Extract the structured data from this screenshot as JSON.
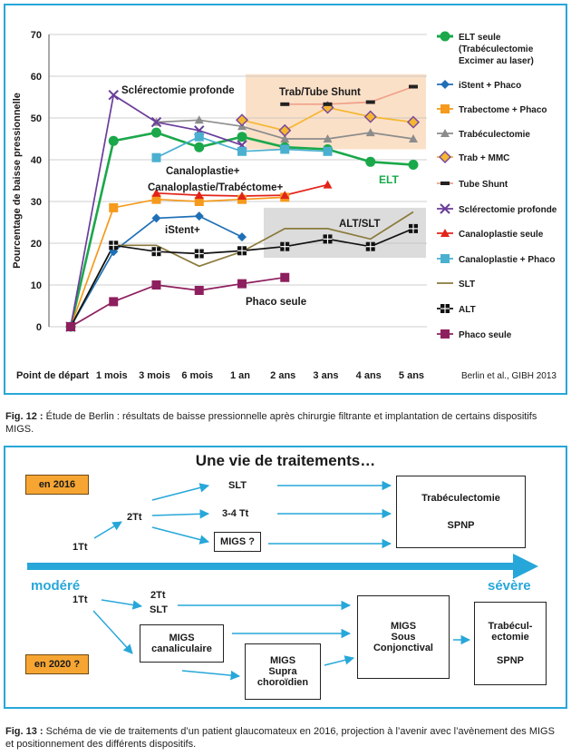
{
  "chart_data": {
    "type": "line",
    "ylabel": "Pourcentage de baisse pressionnelle",
    "ylim": [
      0,
      70
    ],
    "yticks": [
      0,
      10,
      20,
      30,
      40,
      50,
      60,
      70
    ],
    "categories": [
      "Point de départ",
      "1 mois",
      "3 mois",
      "6 mois",
      "1 an",
      "2 ans",
      "3 ans",
      "4 ans",
      "5 ans"
    ],
    "source_note": "Berlin et al., GIBH 2013",
    "series": [
      {
        "name": "ELT seule (Trabéculectomie Excimer au laser)",
        "color": "#1aa84a",
        "marker": "circle",
        "values": [
          0,
          44.5,
          46.5,
          43,
          45.5,
          43,
          42.5,
          39.5,
          38.8
        ]
      },
      {
        "name": "iStent + Phaco",
        "color": "#1f6fb6",
        "marker": "diamond",
        "values": [
          0,
          18,
          26,
          26.5,
          21.5,
          null,
          null,
          null,
          null
        ]
      },
      {
        "name": "Trabectome + Phaco",
        "color": "#f59a1c",
        "marker": "square",
        "values": [
          0,
          28.5,
          30.5,
          30,
          30.5,
          31,
          null,
          null,
          null
        ]
      },
      {
        "name": "Trabéculectomie",
        "color": "#8c8c8c",
        "marker": "triangle",
        "values": [
          null,
          null,
          49,
          49.5,
          48,
          45,
          45,
          46.5,
          45
        ]
      },
      {
        "name": "Trab + MMC",
        "color": "#f5b731",
        "marker": "diamond-open",
        "values": [
          null,
          null,
          null,
          null,
          49.5,
          47,
          52.5,
          50.3,
          49
        ]
      },
      {
        "name": "Tube Shunt",
        "color": "#f0a088",
        "marker": "dash",
        "values": [
          null,
          null,
          null,
          null,
          null,
          53.3,
          53.3,
          53.8,
          57.5
        ]
      },
      {
        "name": "Sclérectomie profonde",
        "color": "#6a3d9a",
        "marker": "x",
        "values": [
          0,
          55.5,
          49,
          47,
          43.5,
          null,
          null,
          null,
          null
        ]
      },
      {
        "name": "Canaloplastie seule",
        "color": "#e2231a",
        "marker": "triangle",
        "values": [
          null,
          null,
          32,
          31.5,
          31.3,
          31.5,
          34,
          null,
          null
        ]
      },
      {
        "name": "Canaloplastie + Phaco",
        "color": "#4bb0d0",
        "marker": "square",
        "values": [
          null,
          null,
          40.5,
          45.5,
          42,
          42.5,
          42,
          null,
          null
        ]
      },
      {
        "name": "SLT",
        "color": "#8a7a3c",
        "marker": "none",
        "values": [
          0,
          19.5,
          19.5,
          14.5,
          18,
          23.5,
          23.5,
          21,
          27.5
        ]
      },
      {
        "name": "ALT",
        "color": "#111111",
        "marker": "square-cross",
        "values": [
          0,
          19.5,
          18,
          17.5,
          18.2,
          19.2,
          21,
          19.2,
          23.5
        ]
      },
      {
        "name": "Phaco seule",
        "color": "#8e1f5e",
        "marker": "square",
        "values": [
          0,
          6,
          10,
          8.7,
          10.3,
          11.8,
          null,
          null,
          null
        ]
      }
    ],
    "annotations": {
      "sclerectomie": "Sclérectomie profonde",
      "trab_tube": "Trab/Tube Shunt",
      "canaloplastie": "Canaloplastie+",
      "canalo_trab": "Canaloplastie/Trabéctome+",
      "elt": "ELT",
      "istent": "iStent+",
      "alt_slt": "ALT/SLT",
      "phaco": "Phaco seule"
    },
    "legend_position": "right",
    "grid": true
  },
  "fig12_caption": {
    "label": "Fig. 12 :",
    "text": " Étude de Berlin : résultats de baisse pressionnelle après chirurgie filtrante et implantation de certains dispositifs MIGS."
  },
  "diagram": {
    "title": "Une vie de traitements…",
    "tag_2016": "en 2016",
    "tag_2020": "en 2020 ?",
    "axis_left": "modéré",
    "axis_right": "sévère",
    "top": {
      "n1": "1Tt",
      "n2": "2Tt",
      "slt": "SLT",
      "tt34": "3-4 Tt",
      "migs": "MIGS ?",
      "trab": "Trabéculectomie",
      "spnp": "SPNP"
    },
    "bottom": {
      "n1": "1Tt",
      "n2": "2Tt",
      "slt": "SLT",
      "migs_can_1": "MIGS",
      "migs_can_2": "canaliculaire",
      "migs_sup_1": "MIGS",
      "migs_sup_2": "Supra",
      "migs_sup_3": "choroïdien",
      "migs_sc_1": "MIGS",
      "migs_sc_2": "Sous",
      "migs_sc_3": "Conjonctival",
      "trab_1": "Trabécul-",
      "trab_2": "ectomie",
      "spnp": "SPNP"
    }
  },
  "fig13_caption": {
    "label": "Fig. 13 :",
    "text": " Schéma de vie de traitements d’un patient glaucomateux en 2016, projection à l’avenir avec l’avènement des MIGS et positionnement des différents dispositifs."
  }
}
